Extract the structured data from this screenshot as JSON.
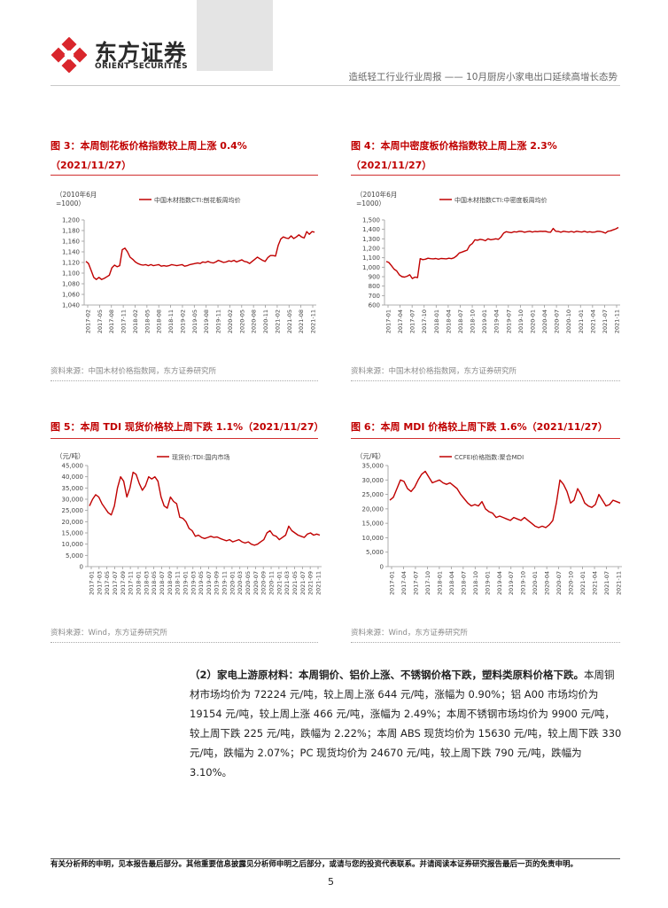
{
  "header": {
    "logo_cn": "东方证券",
    "logo_en": "ORIENT SECURITIES",
    "report_title": "造纸轻工行业行业周报 —— 10月厨房小家电出口延续高增长态势"
  },
  "figures": [
    {
      "title": "图 3：本周刨花板价格指数较上周上涨 0.4%",
      "subtitle": "（2021/11/27）",
      "unit": "（2010年6月=1000）",
      "source": "资料来源：中国木材价格指数网，东方证券研究所"
    },
    {
      "title": "图 4：本周中密度板价格指数较上周上涨 2.3%",
      "subtitle": "（2021/11/27）",
      "unit": "（2010年6月=1000）",
      "source": "资料来源：中国木材价格指数网，东方证券研究所"
    },
    {
      "title": "图 5：本周 TDI 现货价格较上周下跌 1.1%（2021/11/27）",
      "subtitle": "",
      "unit": "（元/吨）",
      "source": "资料来源：Wind，东方证券研究所"
    },
    {
      "title": "图 6：本周 MDI 价格较上周下跌 1.6%（2021/11/27）",
      "subtitle": "",
      "unit": "（元/吨）",
      "source": "资料来源：Wind，东方证券研究所"
    }
  ],
  "chart_data": [
    {
      "type": "line",
      "title": "本周刨花板价格指数较上周上涨 0.4%",
      "ylabel": "2010年6月=1000",
      "ylim": [
        1040,
        1200
      ],
      "yticks": [
        "1,040",
        "1,060",
        "1,080",
        "1,100",
        "1,120",
        "1,140",
        "1,160",
        "1,180",
        "1,200"
      ],
      "xticks": [
        "2017-02",
        "2017-05",
        "2017-08",
        "2017-11",
        "2018-02",
        "2018-05",
        "2018-08",
        "2018-11",
        "2019-02",
        "2019-05",
        "2019-08",
        "2019-11",
        "2020-02",
        "2020-05",
        "2020-08",
        "2020-11",
        "2021-02",
        "2021-05",
        "2021-08",
        "2021-11"
      ],
      "series": [
        {
          "name": "中国木材指数CTI:刨花板周均价",
          "color": "#c00000",
          "values": [
            1122,
            1118,
            1105,
            1092,
            1088,
            1092,
            1088,
            1090,
            1093,
            1096,
            1110,
            1115,
            1112,
            1114,
            1144,
            1147,
            1140,
            1130,
            1126,
            1121,
            1118,
            1116,
            1115,
            1116,
            1114,
            1116,
            1114,
            1115,
            1116,
            1113,
            1114,
            1113,
            1114,
            1116,
            1115,
            1114,
            1115,
            1116,
            1113,
            1114,
            1116,
            1117,
            1118,
            1119,
            1118,
            1121,
            1120,
            1122,
            1120,
            1119,
            1121,
            1124,
            1122,
            1120,
            1121,
            1123,
            1122,
            1124,
            1121,
            1123,
            1125,
            1122,
            1121,
            1118,
            1122,
            1126,
            1130,
            1127,
            1124,
            1122,
            1129,
            1133,
            1133,
            1132,
            1152,
            1164,
            1168,
            1166,
            1165,
            1170,
            1165,
            1168,
            1172,
            1168,
            1166,
            1178,
            1173,
            1178,
            1177
          ]
        }
      ]
    },
    {
      "type": "line",
      "title": "本周中密度板价格指数较上周上涨 2.3%",
      "ylabel": "2010年6月=1000",
      "ylim": [
        600,
        1500
      ],
      "yticks": [
        "600",
        "700",
        "800",
        "900",
        "1,000",
        "1,100",
        "1,200",
        "1,300",
        "1,400",
        "1,500"
      ],
      "xticks": [
        "2017-01",
        "2017-04",
        "2017-07",
        "2017-10",
        "2018-01",
        "2018-04",
        "2018-07",
        "2018-10",
        "2019-01",
        "2019-04",
        "2019-07",
        "2019-10",
        "2020-01",
        "2020-04",
        "2020-07",
        "2020-10",
        "2021-01",
        "2021-04",
        "2021-07",
        "2021-11"
      ],
      "series": [
        {
          "name": "中国木材指数CTI:中密度板周均价",
          "color": "#c00000",
          "values": [
            1060,
            1050,
            1015,
            980,
            960,
            920,
            900,
            895,
            905,
            920,
            880,
            895,
            890,
            1090,
            1080,
            1085,
            1095,
            1090,
            1088,
            1092,
            1085,
            1092,
            1090,
            1088,
            1095,
            1090,
            1100,
            1120,
            1150,
            1160,
            1170,
            1180,
            1230,
            1250,
            1290,
            1285,
            1295,
            1290,
            1280,
            1300,
            1290,
            1295,
            1300,
            1295,
            1320,
            1360,
            1375,
            1370,
            1365,
            1375,
            1372,
            1380,
            1378,
            1370,
            1375,
            1380,
            1372,
            1378,
            1375,
            1380,
            1378,
            1380,
            1372,
            1370,
            1410,
            1380,
            1378,
            1370,
            1380,
            1375,
            1372,
            1378,
            1370,
            1380,
            1375,
            1372,
            1380,
            1370,
            1375,
            1370,
            1372,
            1380,
            1378,
            1372,
            1360,
            1380,
            1385,
            1395,
            1405,
            1420
          ]
        }
      ]
    },
    {
      "type": "line",
      "title": "本周 TDI 现货价格较上周下跌 1.1%",
      "ylabel": "元/吨",
      "ylim": [
        0,
        45000
      ],
      "yticks": [
        "0",
        "5,000",
        "10,000",
        "15,000",
        "20,000",
        "25,000",
        "30,000",
        "35,000",
        "40,000",
        "45,000"
      ],
      "xticks": [
        "2017-01",
        "2017-03",
        "2017-05",
        "2017-07",
        "2017-09",
        "2017-11",
        "2018-01",
        "2018-03",
        "2018-05",
        "2018-07",
        "2018-09",
        "2018-11",
        "2019-01",
        "2019-03",
        "2019-05",
        "2019-07",
        "2019-09",
        "2019-11",
        "2020-01",
        "2020-03",
        "2020-05",
        "2020-07",
        "2020-09",
        "2020-11",
        "2021-01",
        "2021-03",
        "2021-05",
        "2021-07",
        "2021-09",
        "2021-11"
      ],
      "series": [
        {
          "name": "现货价:TDI:国内市场",
          "color": "#c00000",
          "values": [
            27000,
            30000,
            32000,
            31000,
            28000,
            26000,
            24000,
            23000,
            27000,
            35000,
            40000,
            38000,
            31000,
            35000,
            42000,
            41000,
            37000,
            34000,
            36000,
            40000,
            39000,
            40000,
            38000,
            31000,
            27000,
            26000,
            31000,
            29000,
            28000,
            22000,
            21500,
            20000,
            17000,
            16000,
            13500,
            14000,
            13000,
            12500,
            13000,
            13500,
            13000,
            13200,
            12500,
            12000,
            11500,
            12000,
            11000,
            11500,
            12000,
            11000,
            10500,
            11000,
            10000,
            9500,
            10000,
            11000,
            12000,
            15000,
            16000,
            14000,
            13500,
            12000,
            13000,
            14000,
            18000,
            16000,
            15000,
            14000,
            13500,
            13000,
            14500,
            15000,
            14000,
            14500,
            14000
          ]
        }
      ]
    },
    {
      "type": "line",
      "title": "本周 MDI 价格较上周下跌 1.6%",
      "ylabel": "元/吨",
      "ylim": [
        0,
        35000
      ],
      "yticks": [
        "0",
        "5,000",
        "10,000",
        "15,000",
        "20,000",
        "25,000",
        "30,000",
        "35,000"
      ],
      "xticks": [
        "2017-01",
        "2017-04",
        "2017-07",
        "2017-10",
        "2018-01",
        "2018-04",
        "2018-07",
        "2018-10",
        "2019-01",
        "2019-04",
        "2019-07",
        "2019-10",
        "2020-01",
        "2020-04",
        "2020-07",
        "2020-10",
        "2021-01",
        "2021-04",
        "2021-07",
        "2021-11"
      ],
      "series": [
        {
          "name": "CCFEI价格指数:聚合MDI",
          "color": "#c00000",
          "values": [
            23000,
            24000,
            27000,
            30000,
            29500,
            27000,
            26000,
            27500,
            30000,
            32000,
            33000,
            31000,
            29000,
            29500,
            30000,
            29000,
            28500,
            29000,
            28000,
            27000,
            25000,
            23500,
            22000,
            21000,
            21500,
            21000,
            22500,
            20000,
            19000,
            18500,
            17000,
            17500,
            17000,
            16500,
            16000,
            17000,
            16500,
            16000,
            17000,
            16000,
            15000,
            14000,
            13500,
            14000,
            13500,
            14500,
            16000,
            22000,
            30000,
            28500,
            26000,
            22000,
            23000,
            27000,
            25000,
            22000,
            21000,
            20500,
            21500,
            25000,
            23000,
            21000,
            21500,
            23000,
            22500,
            22000
          ]
        }
      ]
    }
  ],
  "body": {
    "lead": "（2）家电上游原材料：本周铜价、铝价上涨、不锈钢价格下跌，塑料类原料价格下跌。",
    "text": "本周铜材市场均价为 72224 元/吨，较上周上涨 644 元/吨，涨幅为 0.90%；铝 A00 市场均价为 19154 元/吨，较上周上涨 466 元/吨，涨幅为 2.49%；本周不锈钢市场均价为 9900 元/吨，较上周下跌 225 元/吨，跌幅为 2.22%；本周 ABS 现货均价为 15630 元/吨，较上周下跌 330 元/吨，跌幅为 2.07%；PC 现货均价为 24670 元/吨，较上周下跌 790 元/吨，跌幅为 3.10%。"
  },
  "footer": {
    "disclaimer": "有关分析师的申明，见本报告最后部分。其他重要信息披露见分析师申明之后部分，或请与您的投资代表联系。并请阅读本证券研究报告最后一页的免责申明。",
    "page_number": "5"
  }
}
